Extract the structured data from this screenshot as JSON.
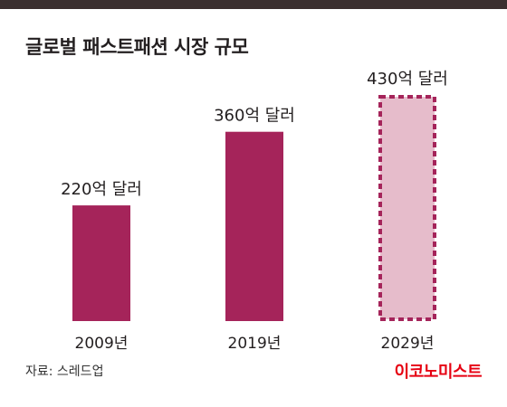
{
  "header": {
    "title": "글로벌 패스트패션 시장 규모"
  },
  "chart_data": {
    "type": "bar",
    "title": "글로벌 패스트패션 시장 규모",
    "categories": [
      "2009년",
      "2019년",
      "2029년"
    ],
    "values": [
      220,
      360,
      430
    ],
    "value_labels": [
      "220억 달러",
      "360억 달러",
      "430억 달러"
    ],
    "unit": "억 달러",
    "ylim": [
      0,
      430
    ],
    "grid": false,
    "legend": "none",
    "projected": [
      false,
      false,
      true
    ],
    "colors": {
      "actual": "#a5245a",
      "projected_fill": "#e6bccb",
      "projected_border": "#a5245a"
    }
  },
  "footer": {
    "source": "자료: 스레드업",
    "brand": "이코노미스트"
  }
}
